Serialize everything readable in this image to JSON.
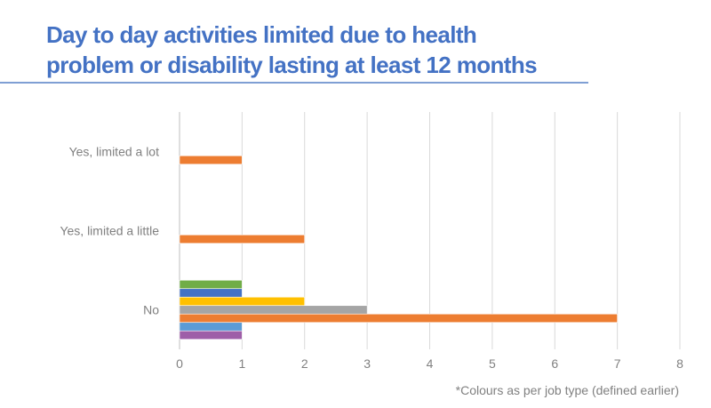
{
  "chart_data": {
    "type": "bar",
    "orientation": "horizontal",
    "title_lines": [
      "Day to day activities limited due to health",
      "problem or disability lasting at least 12 months"
    ],
    "categories": [
      "Yes, limited a lot",
      "Yes, limited a little",
      "No"
    ],
    "series": [
      {
        "color": "#70ad47",
        "values": [
          0,
          0,
          1
        ]
      },
      {
        "color": "#4472c4",
        "values": [
          0,
          0,
          1
        ]
      },
      {
        "color": "#ffc000",
        "values": [
          0,
          0,
          2
        ]
      },
      {
        "color": "#a5a5a5",
        "values": [
          0,
          0,
          3
        ]
      },
      {
        "color": "#ed7d31",
        "values": [
          1,
          2,
          7
        ]
      },
      {
        "color": "#5b9bd5",
        "values": [
          0,
          0,
          1
        ]
      },
      {
        "color": "#9e5ea8",
        "values": [
          0,
          0,
          1
        ]
      }
    ],
    "xlim": [
      0,
      8
    ],
    "xticks": [
      "0",
      "1",
      "2",
      "3",
      "4",
      "5",
      "6",
      "7",
      "8"
    ],
    "grid": true,
    "legend": "none",
    "footnote": "*Colours as per job type (defined earlier)"
  }
}
